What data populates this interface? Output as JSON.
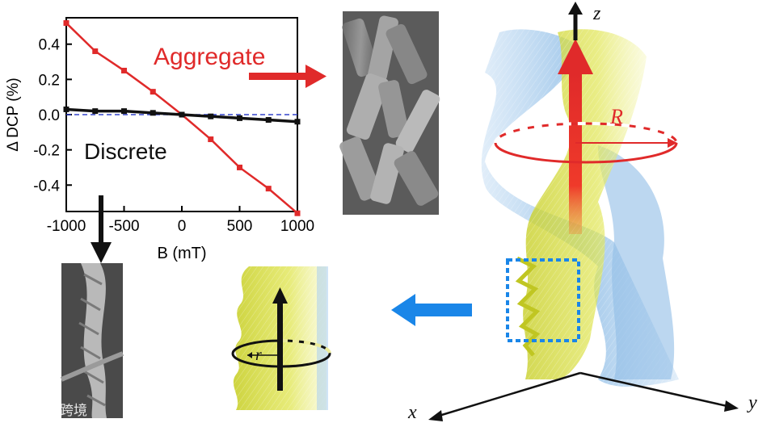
{
  "chart_data": {
    "type": "line",
    "title": "",
    "xlabel": "B (mT)",
    "ylabel": "Δ DCP (%)",
    "xlim": [
      -1000,
      1000
    ],
    "ylim": [
      -0.55,
      0.55
    ],
    "xticks": [
      -1000,
      -500,
      0,
      500,
      1000
    ],
    "xtick_labels": [
      "-1000",
      "-500",
      "0",
      "500",
      "1000"
    ],
    "yticks": [
      0.4,
      0.2,
      0.0,
      -0.2,
      -0.4
    ],
    "ytick_labels": [
      "0.4",
      "0.2",
      "0.0",
      "-0.2",
      "-0.4"
    ],
    "reference_line": {
      "y": 0.0,
      "style": "dashed",
      "color": "#3344cc"
    },
    "series": [
      {
        "name": "Aggregate",
        "color": "#e02a2a",
        "x": [
          -1000,
          -750,
          -500,
          -250,
          0,
          250,
          500,
          750,
          1000
        ],
        "y": [
          0.52,
          0.36,
          0.25,
          0.13,
          0.0,
          -0.14,
          -0.3,
          -0.42,
          -0.56
        ]
      },
      {
        "name": "Discrete",
        "color": "#111111",
        "x": [
          -1000,
          -750,
          -500,
          -250,
          0,
          250,
          500,
          750,
          1000
        ],
        "y": [
          0.03,
          0.02,
          0.02,
          0.01,
          0.0,
          -0.01,
          -0.02,
          -0.03,
          -0.04
        ]
      }
    ]
  },
  "labels": {
    "aggregate": "Aggregate",
    "discrete": "Discrete",
    "axis_z": "z",
    "axis_x": "x",
    "axis_y": "y",
    "radius_big": "R",
    "radius_small": "r"
  },
  "watermark": "大数跨境",
  "colors": {
    "red": "#e02a2a",
    "blue_arrow": "#1a86e8",
    "helix_blue": "#8fbde6",
    "helix_yellow": "#d6dc3c",
    "box_dash": "#1a86e8"
  }
}
